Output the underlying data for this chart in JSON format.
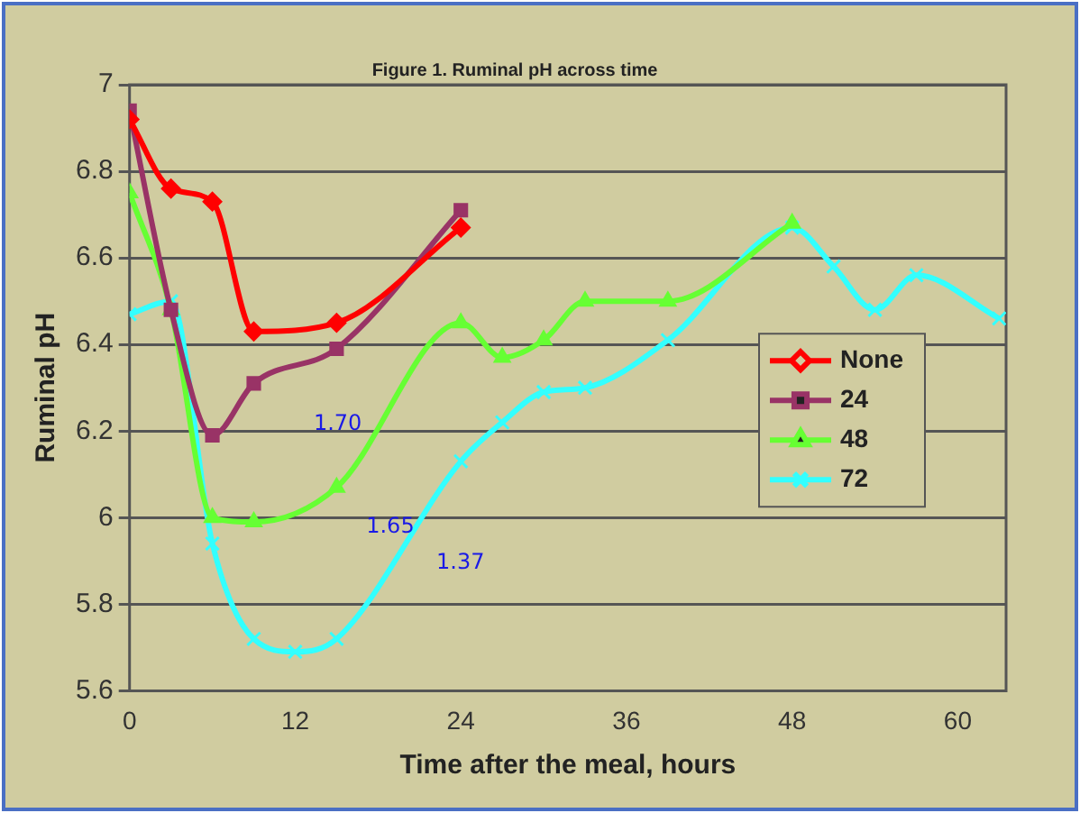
{
  "chart_data": {
    "type": "line",
    "title": "Figure 1. Ruminal pH across time",
    "xlabel": "Time after the meal, hours",
    "ylabel": "Ruminal pH",
    "xlim": [
      0,
      63.5
    ],
    "xticks": [
      0,
      12,
      24,
      36,
      48,
      60
    ],
    "ylim": [
      5.6,
      7
    ],
    "yticks": [
      {
        "value": 5.6,
        "label": "5.6"
      },
      {
        "value": 5.8,
        "label": "5.8"
      },
      {
        "value": 6,
        "label": "6"
      },
      {
        "value": 6.2,
        "label": "6.2"
      },
      {
        "value": 6.4,
        "label": "6.4"
      },
      {
        "value": 6.6,
        "label": "6.6"
      },
      {
        "value": 6.8,
        "label": "6.8"
      },
      {
        "value": 7,
        "label": "7"
      }
    ],
    "grid": "y",
    "legend": "right",
    "series": [
      {
        "name": "None",
        "color": "#ff0000",
        "marker": "diamond",
        "x": [
          0,
          3,
          6,
          9,
          15,
          24
        ],
        "values": [
          6.92,
          6.76,
          6.73,
          6.43,
          6.45,
          6.67
        ]
      },
      {
        "name": "24",
        "color": "#993366",
        "marker": "square",
        "x": [
          0,
          3,
          6,
          9,
          15,
          24
        ],
        "values": [
          6.94,
          6.48,
          6.19,
          6.31,
          6.39,
          6.71
        ]
      },
      {
        "name": "48",
        "color": "#66ff33",
        "marker": "triangle",
        "x": [
          0,
          3,
          6,
          9,
          15,
          24,
          27,
          30,
          33,
          39,
          48
        ],
        "values": [
          6.75,
          6.48,
          6.0,
          5.99,
          6.07,
          6.45,
          6.37,
          6.41,
          6.5,
          6.5,
          6.68
        ]
      },
      {
        "name": "72",
        "color": "#33ffff",
        "marker": "cross",
        "x": [
          0,
          3,
          6,
          9,
          12,
          15,
          24,
          27,
          30,
          33,
          39,
          48,
          51,
          54,
          57,
          63
        ],
        "values": [
          6.47,
          6.5,
          5.94,
          5.72,
          5.69,
          5.72,
          6.13,
          6.22,
          6.29,
          6.3,
          6.41,
          6.67,
          6.58,
          6.48,
          6.56,
          6.46
        ]
      }
    ],
    "annotations": [
      "1.70",
      "1.65",
      "1.37"
    ]
  }
}
